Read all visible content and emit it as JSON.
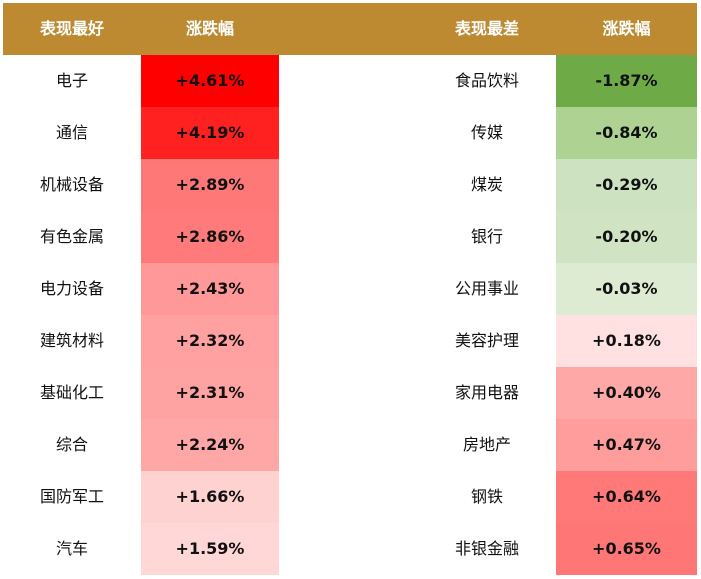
{
  "chart_data": {
    "type": "table",
    "best": {
      "header_name": "表现最好",
      "header_value": "涨跌幅",
      "rows": [
        {
          "name": "电子",
          "value": "+4.61%",
          "color": "#FF0000"
        },
        {
          "name": "通信",
          "value": "+4.19%",
          "color": "#FF2020"
        },
        {
          "name": "机械设备",
          "value": "+2.89%",
          "color": "#FF7878"
        },
        {
          "name": "有色金属",
          "value": "+2.86%",
          "color": "#FF7A7A"
        },
        {
          "name": "电力设备",
          "value": "+2.43%",
          "color": "#FF9898"
        },
        {
          "name": "建筑材料",
          "value": "+2.32%",
          "color": "#FFA1A1"
        },
        {
          "name": "基础化工",
          "value": "+2.31%",
          "color": "#FFA2A2"
        },
        {
          "name": "综合",
          "value": "+2.24%",
          "color": "#FFA7A7"
        },
        {
          "name": "国防军工",
          "value": "+1.66%",
          "color": "#FFD2D2"
        },
        {
          "name": "汽车",
          "value": "+1.59%",
          "color": "#FFD7D7"
        }
      ]
    },
    "worst": {
      "header_name": "表现最差",
      "header_value": "涨跌幅",
      "rows": [
        {
          "name": "食品饮料",
          "value": "-1.87%",
          "color": "#6EAA46"
        },
        {
          "name": "传媒",
          "value": "-0.84%",
          "color": "#AED292"
        },
        {
          "name": "煤炭",
          "value": "-0.29%",
          "color": "#CDE2C1"
        },
        {
          "name": "银行",
          "value": "-0.20%",
          "color": "#D0E4C4"
        },
        {
          "name": "公用事业",
          "value": "-0.03%",
          "color": "#DCEBD2"
        },
        {
          "name": "美容护理",
          "value": "+0.18%",
          "color": "#FFE1E1"
        },
        {
          "name": "家用电器",
          "value": "+0.40%",
          "color": "#FFA8A8"
        },
        {
          "name": "房地产",
          "value": "+0.47%",
          "color": "#FF9D9D"
        },
        {
          "name": "钢铁",
          "value": "+0.64%",
          "color": "#FF7979"
        },
        {
          "name": "非银金融",
          "value": "+0.65%",
          "color": "#FF7676"
        }
      ]
    },
    "header_color": "#BD8A31"
  }
}
